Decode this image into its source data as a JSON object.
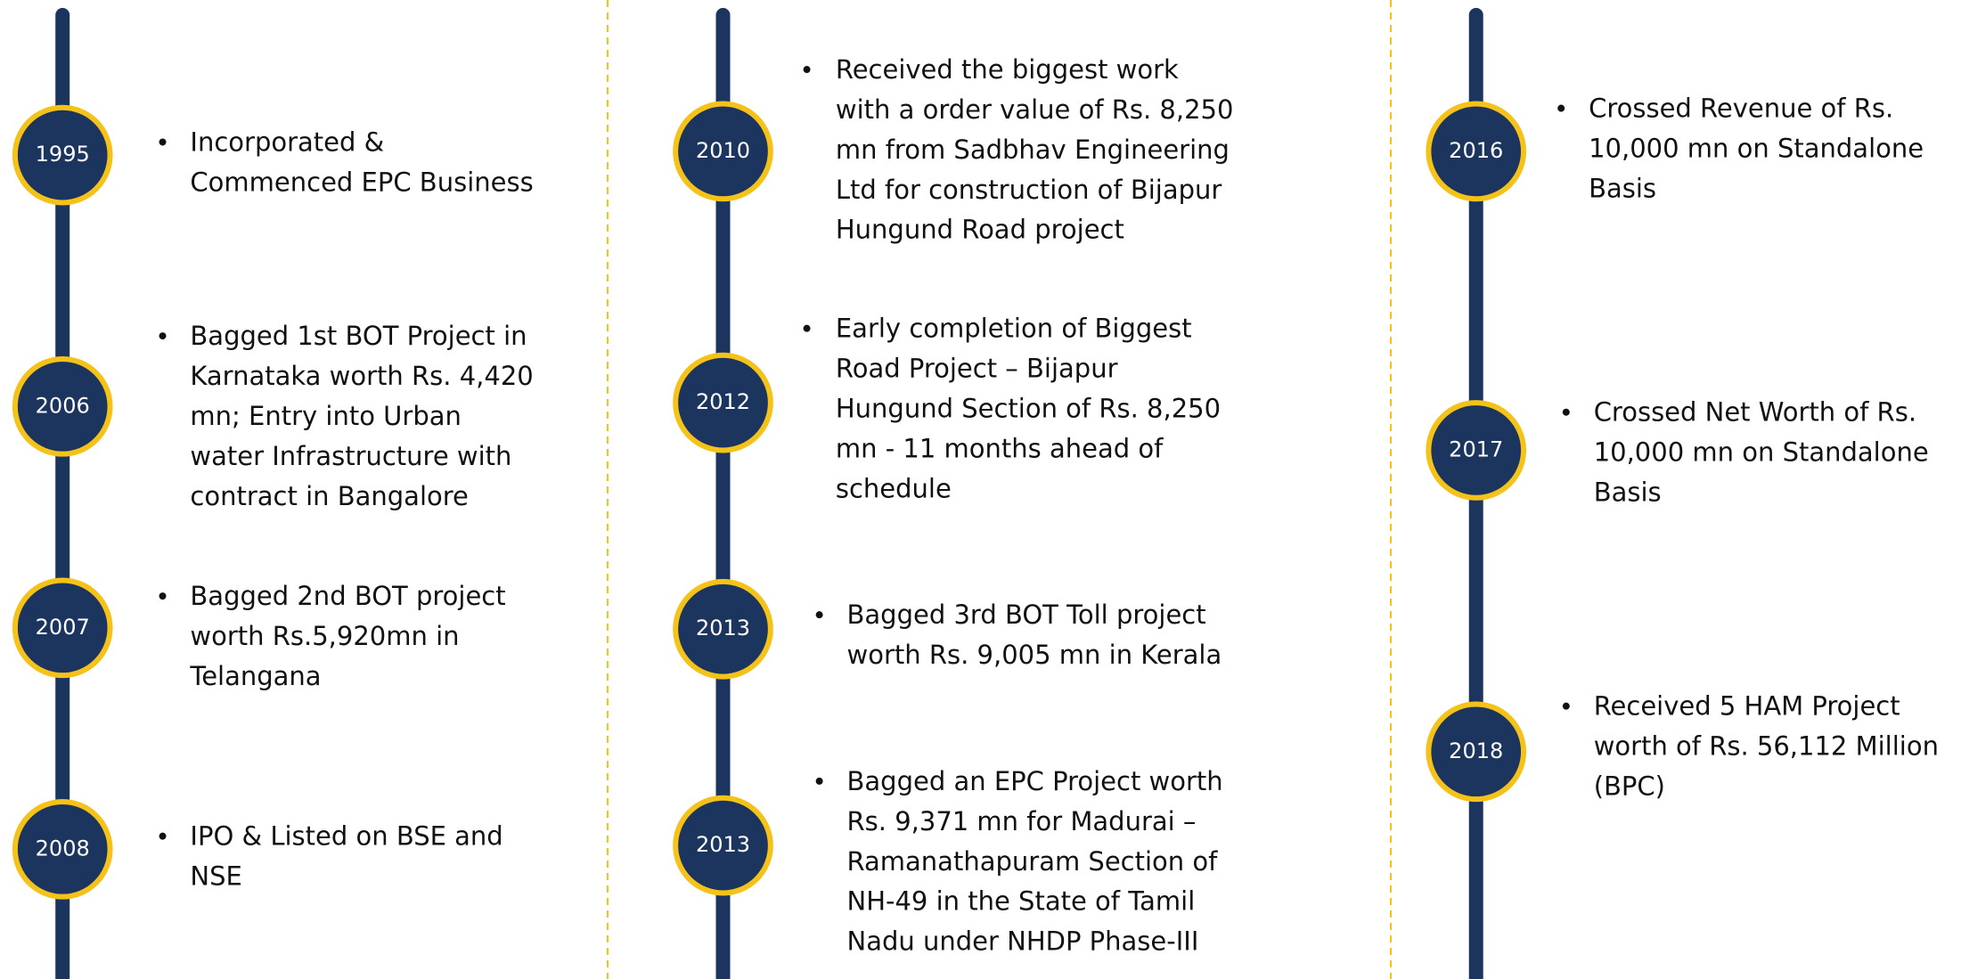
{
  "columns": [
    {
      "items": [
        {
          "year": "1995",
          "lines": [
            "Incorporated &",
            "Commenced EPC Business"
          ]
        },
        {
          "year": "2006",
          "lines": [
            "Bagged 1st BOT Project in",
            "Karnataka worth Rs. 4,420",
            "mn; Entry into Urban",
            "water Infrastructure with",
            "contract in Bangalore"
          ]
        },
        {
          "year": "2007",
          "lines": [
            "Bagged 2nd BOT project",
            "worth Rs.5,920mn in",
            "Telangana"
          ]
        },
        {
          "year": "2008",
          "lines": [
            "IPO & Listed on BSE and",
            "NSE"
          ]
        }
      ]
    },
    {
      "items": [
        {
          "year": "2010",
          "lines": [
            "Received the biggest work",
            "with a order value of Rs. 8,250",
            "mn from Sadbhav Engineering",
            "Ltd for construction of Bijapur",
            "Hungund Road project"
          ]
        },
        {
          "year": "2012",
          "lines": [
            "Early completion of Biggest",
            "Road Project – Bijapur",
            "Hungund Section of Rs. 8,250",
            "mn  - 11 months ahead of",
            "schedule"
          ]
        },
        {
          "year": "2013",
          "lines": [
            "Bagged 3rd BOT Toll project",
            "worth Rs. 9,005 mn in Kerala"
          ]
        },
        {
          "year": "2013",
          "lines": [
            "Bagged an EPC Project worth",
            "Rs. 9,371 mn for Madurai –",
            "Ramanathapuram Section of",
            "NH-49 in the State of Tamil",
            "Nadu under NHDP Phase-III"
          ]
        }
      ]
    },
    {
      "items": [
        {
          "year": "2016",
          "lines": [
            "Crossed Revenue of Rs.",
            "10,000 mn on Standalone",
            "Basis"
          ]
        },
        {
          "year": "2017",
          "lines": [
            "Crossed Net Worth of Rs.",
            "10,000 mn on Standalone",
            "Basis"
          ]
        },
        {
          "year": "2018",
          "lines": [
            "Received 5 HAM Project",
            "worth of Rs. 56,112 Million",
            "(BPC)"
          ]
        }
      ]
    }
  ]
}
